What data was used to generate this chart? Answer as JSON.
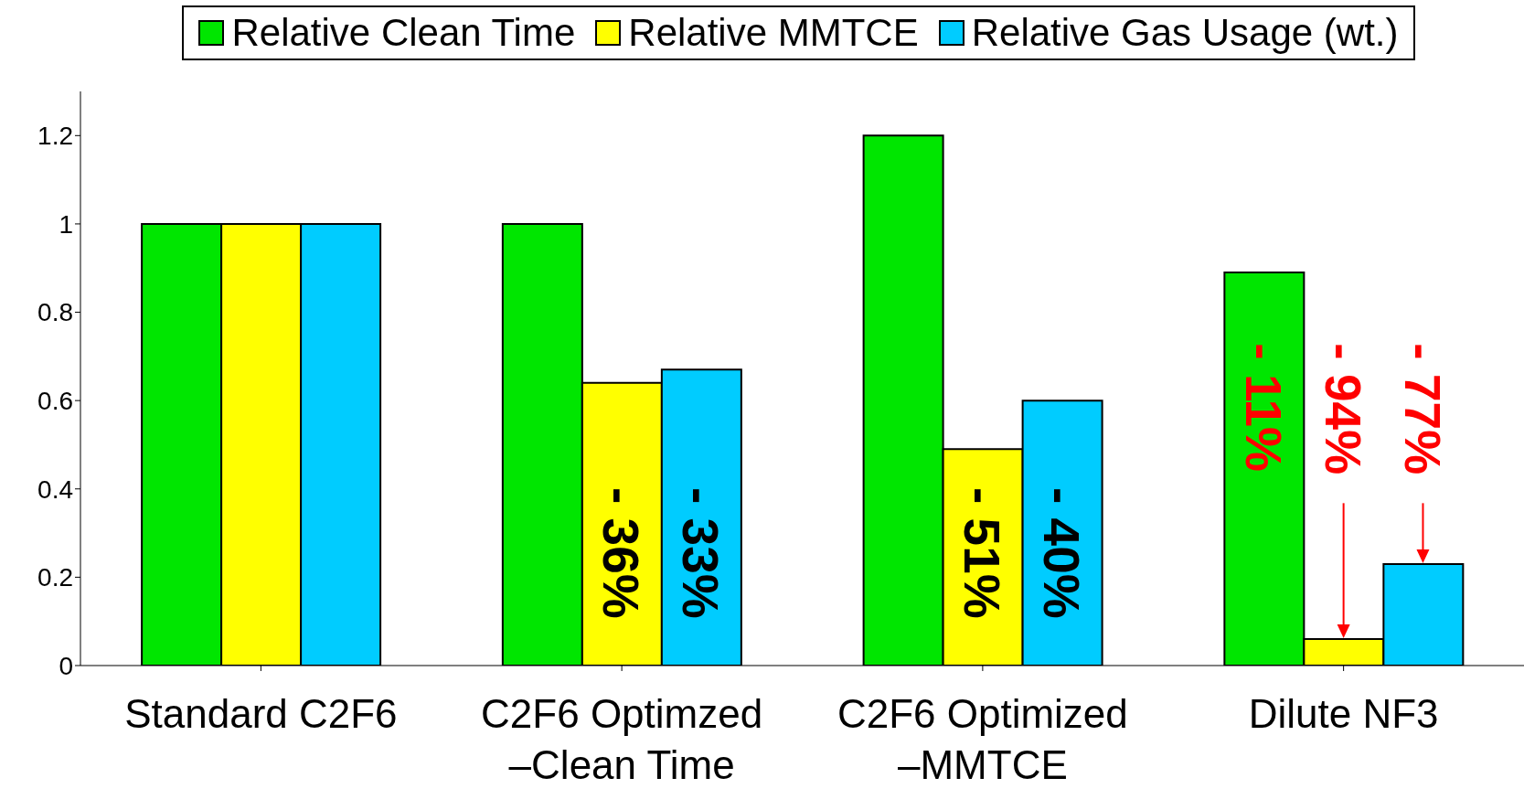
{
  "chart_data": {
    "type": "bar",
    "categories": [
      "Standard C2F6",
      "C2F6 Optimzed –Clean Time",
      "C2F6 Optimized –MMTCE",
      "Dilute NF3"
    ],
    "series": [
      {
        "name": "Relative Clean Time",
        "color": "#00e600",
        "values": [
          1,
          1,
          1.2,
          0.89
        ]
      },
      {
        "name": "Relative MMTCE",
        "color": "#ffff00",
        "values": [
          1,
          0.64,
          0.49,
          0.06
        ]
      },
      {
        "name": "Relative Gas Usage (wt.)",
        "color": "#00ccff",
        "values": [
          1,
          0.67,
          0.6,
          0.23
        ]
      }
    ],
    "annotations": [
      "- 36%",
      "- 33%",
      "- 51%",
      "- 40%",
      "- 11%",
      "- 94%",
      "- 77%"
    ],
    "ylim": [
      0,
      1.3
    ],
    "yticks": [
      0,
      0.2,
      0.4,
      0.6,
      0.8,
      1,
      1.2
    ],
    "grid": false,
    "legend": "top"
  }
}
